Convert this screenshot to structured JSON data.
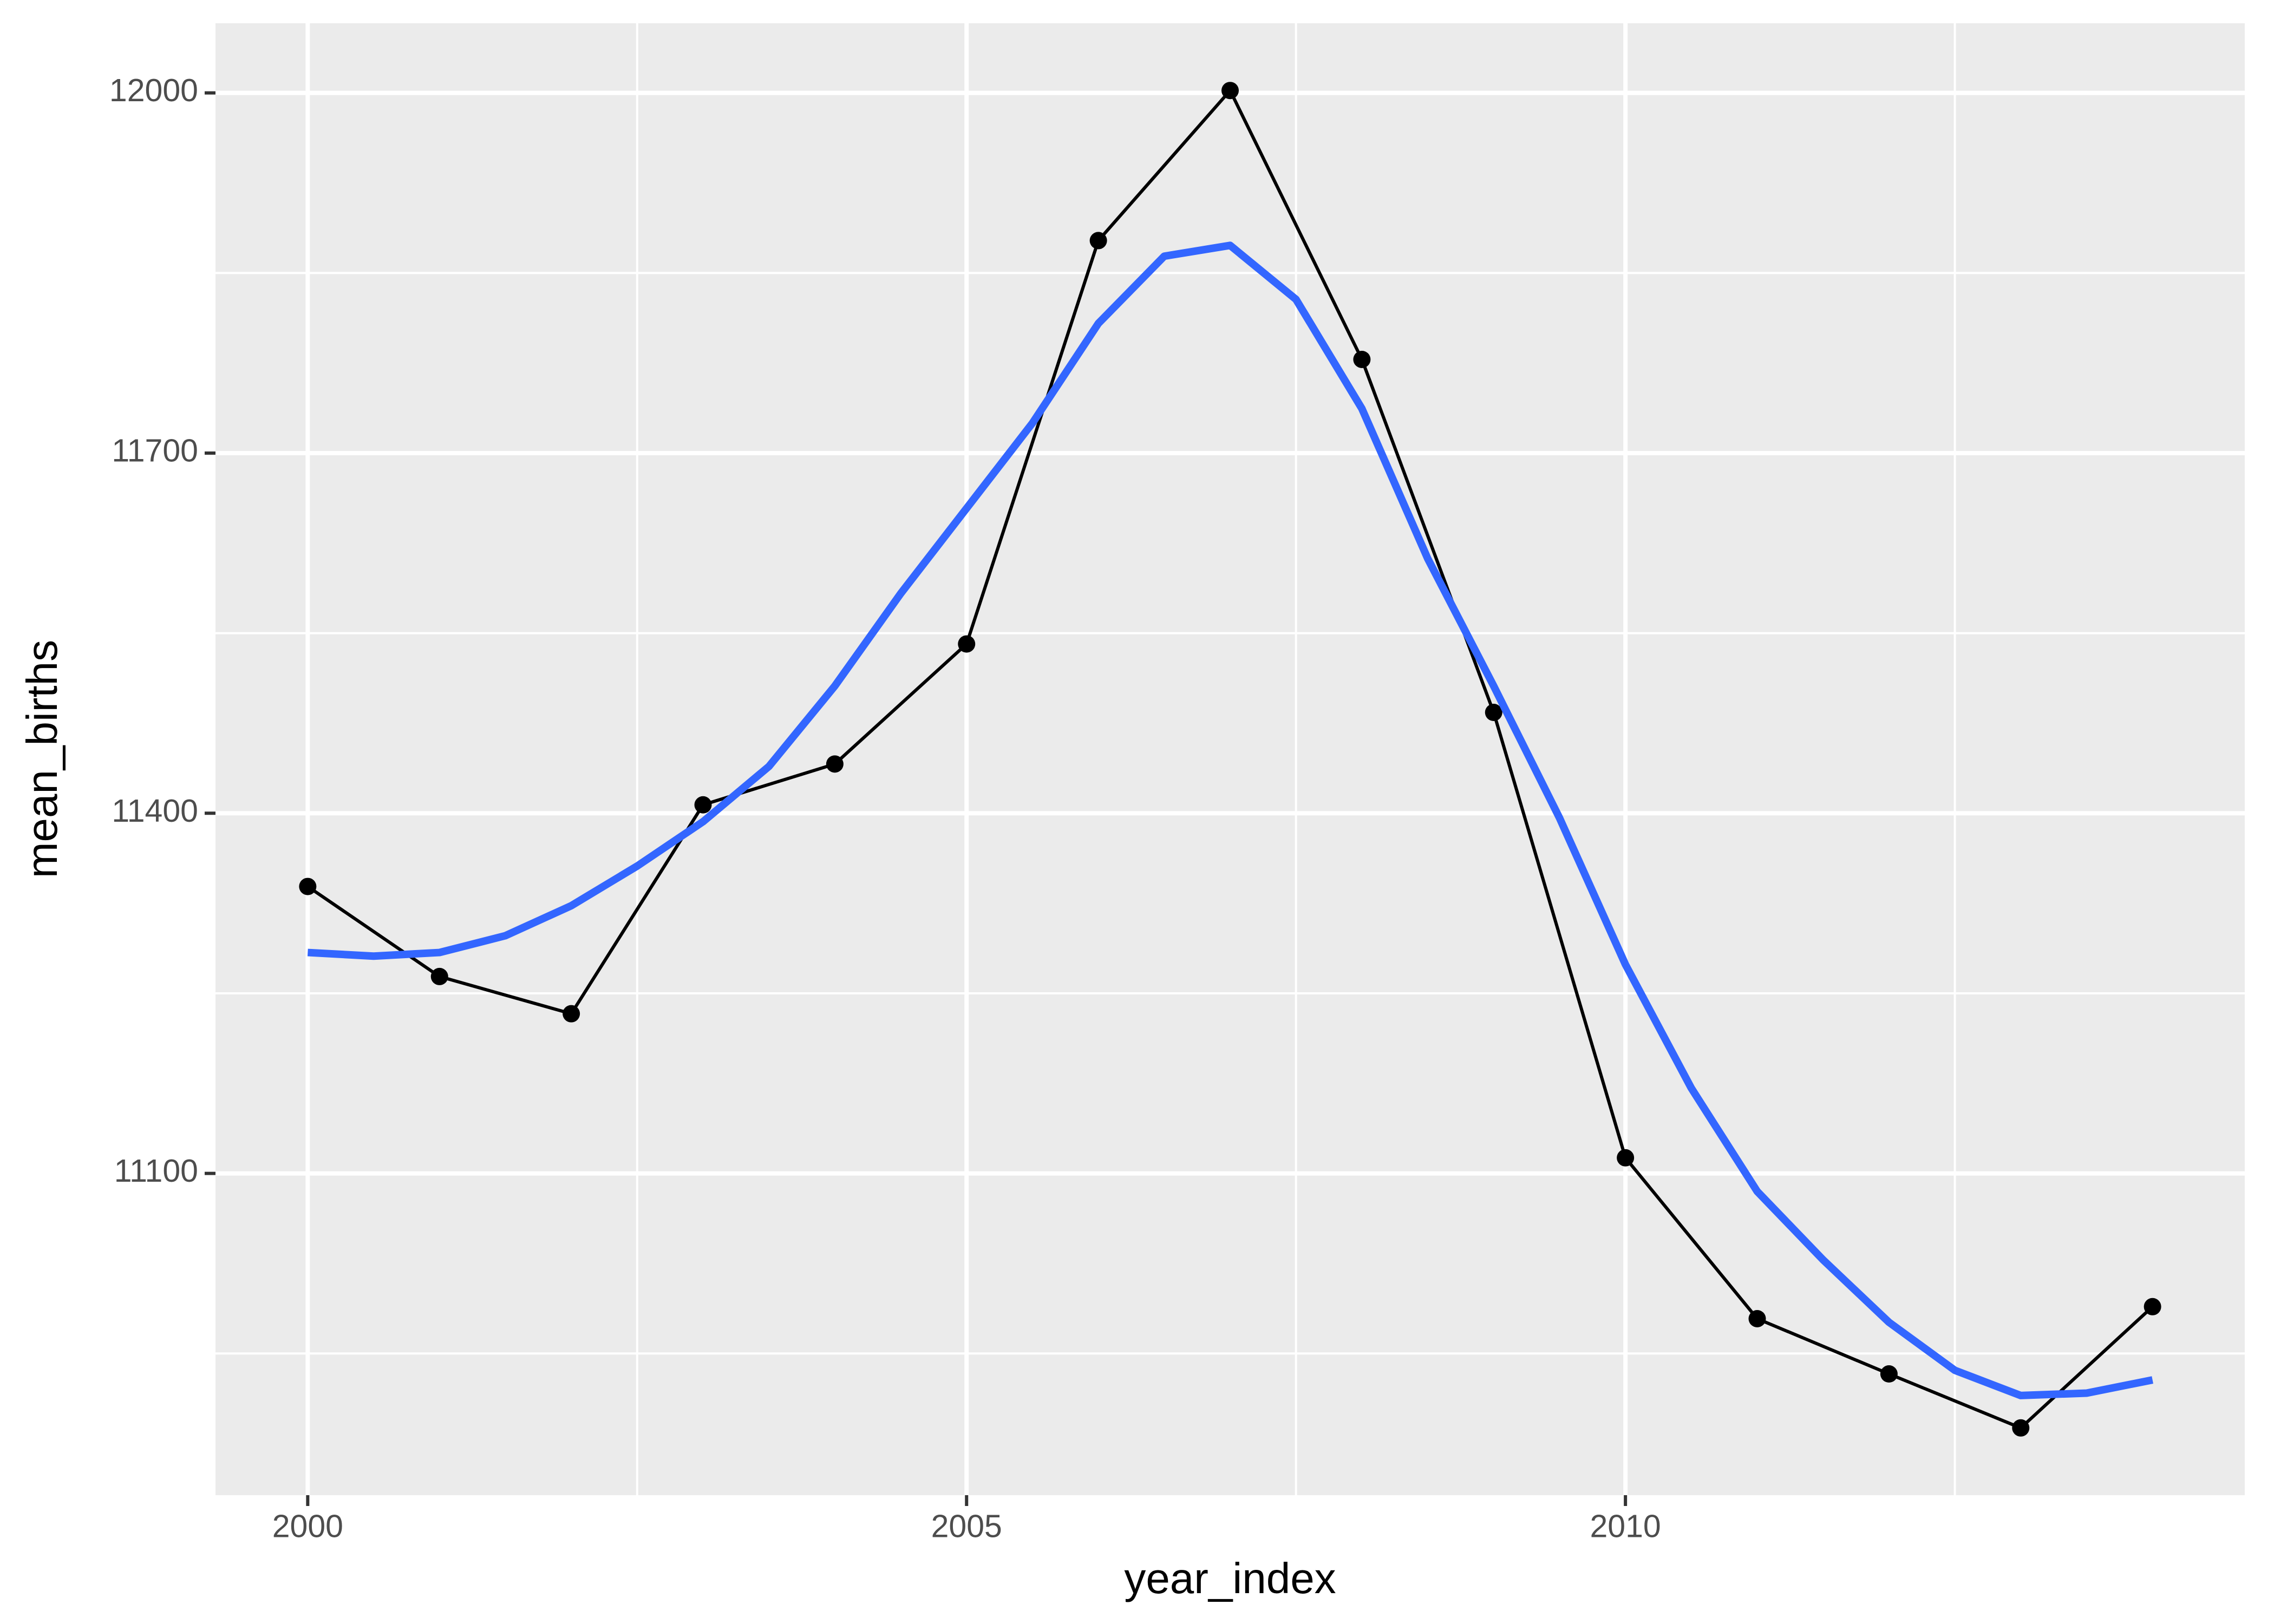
{
  "chart_data": {
    "type": "line",
    "xlabel": "year_index",
    "ylabel": "mean_births",
    "xlim": [
      1999.3,
      2014.7
    ],
    "ylim": [
      10832,
      12058
    ],
    "xticks": [
      2000,
      2005,
      2010
    ],
    "yticks": [
      11100,
      11400,
      11700,
      12000
    ],
    "xminor": [
      2002.5,
      2007.5,
      2012.5
    ],
    "yminor": [
      10950,
      11250,
      11550,
      11850
    ],
    "grid": true,
    "series": [
      {
        "color": "#000000",
        "points": true,
        "x": [
          2000,
          2001,
          2002,
          2003,
          2004,
          2005,
          2006,
          2007,
          2008,
          2009,
          2010,
          2011,
          2012,
          2013,
          2014
        ],
        "values": [
          11339,
          11264,
          11233,
          11407,
          11441,
          11541,
          11877,
          12002,
          11778,
          11484,
          11113,
          10979,
          10933,
          10888,
          10989
        ]
      },
      {
        "color": "#3366FF",
        "points": false,
        "x": [
          2000,
          2000.5,
          2001,
          2001.5,
          2002,
          2002.5,
          2003,
          2003.5,
          2004,
          2004.5,
          2005,
          2005.5,
          2006,
          2006.5,
          2007,
          2007.5,
          2008,
          2008.5,
          2009,
          2009.5,
          2010,
          2010.5,
          2011,
          2011.5,
          2012,
          2012.5,
          2013,
          2013.5,
          2014
        ],
        "values": [
          11284,
          11281,
          11284,
          11298,
          11323,
          11356,
          11393,
          11439,
          11506,
          11583,
          11654,
          11725,
          11808,
          11864,
          11873,
          11828,
          11737,
          11612,
          11506,
          11396,
          11274,
          11171,
          11085,
          11028,
          10976,
          10936,
          10915,
          10917,
          10928
        ]
      }
    ]
  }
}
